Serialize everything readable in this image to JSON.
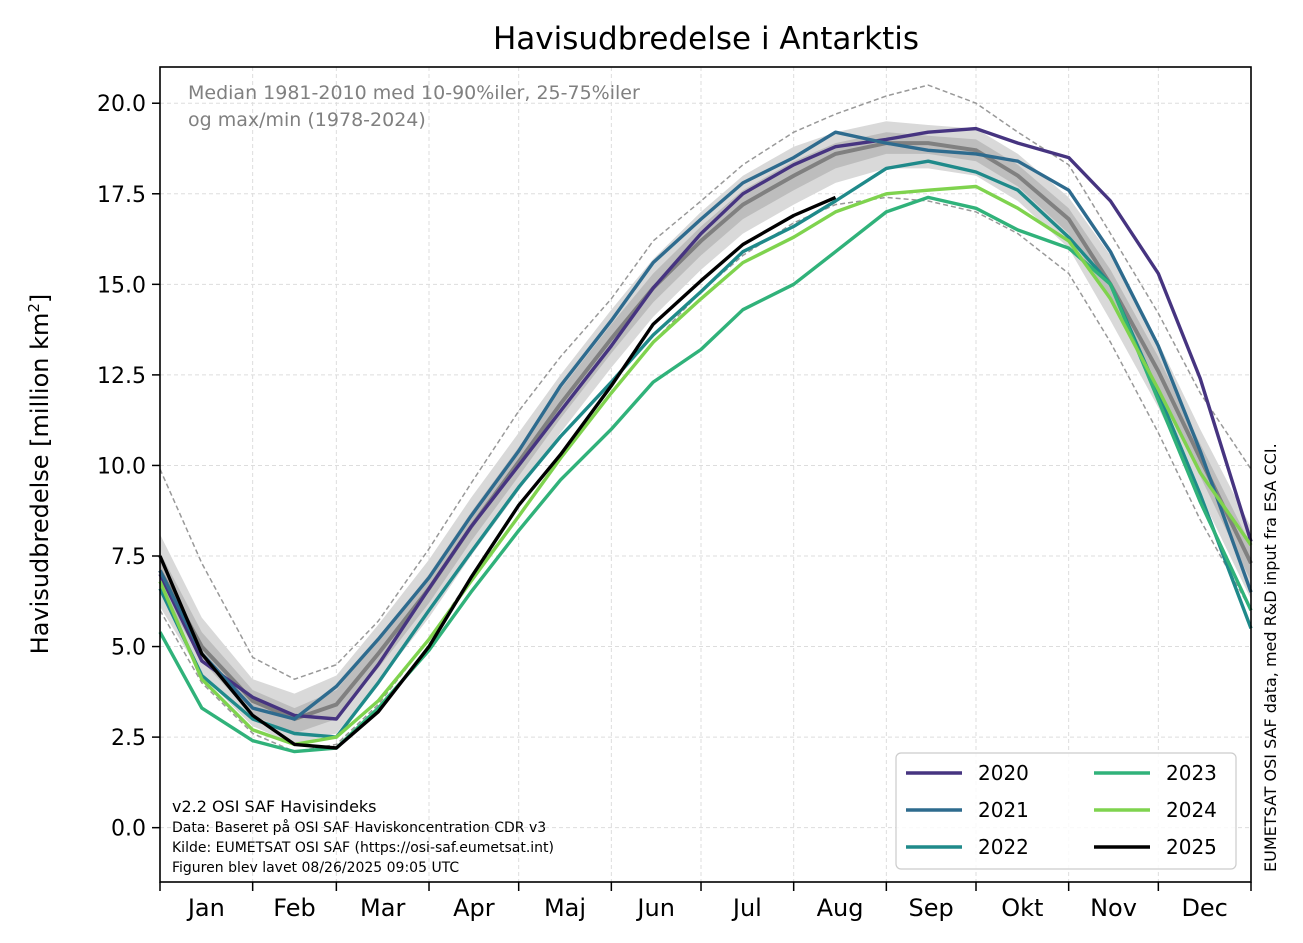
{
  "chart_data": {
    "type": "line",
    "title": "Havisudbredelse i Antarktis",
    "ylabel": "Havisudbredelse [million km",
    "ylabel_sup": "2",
    "ylabel_end": "]",
    "ylim": [
      -1.5,
      21.0
    ],
    "xlim": [
      1,
      366
    ],
    "yticks": [
      0.0,
      2.5,
      5.0,
      7.5,
      10.0,
      12.5,
      15.0,
      17.5,
      20.0
    ],
    "ytick_labels": [
      "0.0",
      "2.5",
      "5.0",
      "7.5",
      "10.0",
      "12.5",
      "15.0",
      "17.5",
      "20.0"
    ],
    "months": [
      "Jan",
      "Feb",
      "Mar",
      "Apr",
      "Maj",
      "Jun",
      "Jul",
      "Aug",
      "Sep",
      "Okt",
      "Nov",
      "Dec"
    ],
    "grid": true,
    "legend_position": "bottom-right",
    "annotation": [
      "Median 1981-2010 med 10-90%iler, 25-75%iler",
      "og max/min (1978-2024)"
    ],
    "footer": [
      "v2.2 OSI SAF Havisindeks",
      "Data: Baseret på OSI SAF Haviskoncentration CDR v3",
      "Kilde: EUMETSAT OSI SAF (https://osi-saf.eumetsat.int)",
      "Figuren blev lavet 08/26/2025 09:05 UTC"
    ],
    "side_note": "EUMETSAT OSI SAF data, med R&D input fra ESA CCI.",
    "x_days": [
      1,
      15,
      32,
      46,
      60,
      74,
      91,
      105,
      121,
      135,
      152,
      166,
      182,
      196,
      213,
      227,
      244,
      258,
      274,
      288,
      305,
      319,
      335,
      349,
      366
    ],
    "climatology": {
      "median": [
        7.1,
        5.0,
        3.5,
        3.0,
        3.4,
        4.8,
        6.6,
        8.3,
        10.1,
        11.7,
        13.5,
        14.9,
        16.2,
        17.2,
        18.0,
        18.6,
        18.9,
        18.9,
        18.7,
        18.0,
        16.8,
        15.0,
        12.6,
        10.2,
        7.3
      ],
      "p25": [
        6.6,
        4.6,
        3.1,
        2.6,
        3.0,
        4.4,
        6.2,
        7.9,
        9.7,
        11.3,
        13.1,
        14.5,
        15.8,
        16.8,
        17.6,
        18.2,
        18.6,
        18.6,
        18.4,
        17.7,
        16.4,
        14.5,
        12.1,
        9.7,
        6.8
      ],
      "p75": [
        7.6,
        5.4,
        3.8,
        3.3,
        3.8,
        5.2,
        7.0,
        8.7,
        10.5,
        12.1,
        13.9,
        15.3,
        16.6,
        17.6,
        18.4,
        18.9,
        19.2,
        19.1,
        19.0,
        18.3,
        17.1,
        15.4,
        13.0,
        10.6,
        7.8
      ],
      "p10": [
        6.1,
        4.2,
        2.8,
        2.3,
        2.6,
        4.0,
        5.8,
        7.5,
        9.3,
        10.9,
        12.7,
        14.1,
        15.4,
        16.4,
        17.2,
        17.8,
        18.2,
        18.2,
        18.0,
        17.3,
        16.0,
        14.0,
        11.6,
        9.2,
        6.3
      ],
      "p90": [
        8.1,
        5.8,
        4.1,
        3.7,
        4.2,
        5.6,
        7.4,
        9.1,
        10.9,
        12.5,
        14.3,
        15.7,
        17.0,
        18.0,
        18.8,
        19.2,
        19.5,
        19.4,
        19.3,
        18.6,
        17.4,
        15.8,
        13.4,
        11.0,
        8.3
      ],
      "max": [
        9.9,
        7.3,
        4.7,
        4.1,
        4.5,
        5.7,
        7.7,
        9.5,
        11.5,
        13.0,
        14.6,
        16.2,
        17.3,
        18.3,
        19.2,
        19.7,
        20.2,
        20.5,
        20.0,
        19.2,
        18.3,
        16.4,
        14.2,
        12.0,
        9.9
      ],
      "min": [
        6.0,
        4.0,
        2.6,
        2.1,
        2.3,
        3.4,
        5.2,
        6.9,
        8.6,
        10.2,
        12.0,
        13.4,
        14.8,
        15.8,
        16.7,
        17.2,
        17.4,
        17.3,
        17.0,
        16.4,
        15.3,
        13.4,
        10.9,
        8.5,
        6.0
      ]
    },
    "series": [
      {
        "name": "2020",
        "color": "#463480",
        "values": [
          7.0,
          4.6,
          3.6,
          3.1,
          3.0,
          4.5,
          6.6,
          8.3,
          10.0,
          11.5,
          13.3,
          14.9,
          16.4,
          17.5,
          18.3,
          18.8,
          19.0,
          19.2,
          19.3,
          18.9,
          18.5,
          17.3,
          15.3,
          12.4,
          7.9
        ]
      },
      {
        "name": "2021",
        "color": "#2e6b8e",
        "values": [
          7.1,
          4.8,
          3.3,
          3.0,
          3.9,
          5.2,
          6.9,
          8.6,
          10.4,
          12.2,
          14.0,
          15.6,
          16.8,
          17.8,
          18.5,
          19.2,
          18.9,
          18.7,
          18.6,
          18.4,
          17.6,
          15.9,
          13.3,
          10.4,
          6.5
        ]
      },
      {
        "name": "2022",
        "color": "#1f8a8a",
        "values": [
          6.6,
          4.2,
          3.0,
          2.6,
          2.5,
          4.0,
          6.0,
          7.6,
          9.4,
          10.8,
          12.3,
          13.6,
          14.8,
          15.9,
          16.6,
          17.3,
          18.2,
          18.4,
          18.1,
          17.6,
          16.3,
          15.0,
          12.0,
          9.2,
          5.5
        ]
      },
      {
        "name": "2023",
        "color": "#30b27a",
        "values": [
          5.4,
          3.3,
          2.4,
          2.1,
          2.2,
          3.3,
          4.9,
          6.5,
          8.2,
          9.6,
          11.0,
          12.3,
          13.2,
          14.3,
          15.0,
          15.9,
          17.0,
          17.4,
          17.1,
          16.5,
          16.0,
          15.0,
          11.8,
          9.0,
          6.0
        ]
      },
      {
        "name": "2024",
        "color": "#7fd34e",
        "values": [
          6.8,
          4.1,
          2.7,
          2.3,
          2.5,
          3.5,
          5.2,
          6.8,
          8.6,
          10.2,
          12.0,
          13.4,
          14.6,
          15.6,
          16.3,
          17.0,
          17.5,
          17.6,
          17.7,
          17.1,
          16.2,
          14.6,
          12.1,
          9.8,
          7.8
        ]
      },
      {
        "name": "2025",
        "color": "#000000",
        "values": [
          7.5,
          4.8,
          3.1,
          2.3,
          2.2,
          3.2,
          5.0,
          6.9,
          8.9,
          10.3,
          12.2,
          13.9,
          15.1,
          16.1,
          16.9,
          null,
          null,
          null,
          null,
          null,
          null,
          null,
          null,
          null,
          null
        ],
        "x_end": 227,
        "end_value": 17.4
      }
    ]
  }
}
